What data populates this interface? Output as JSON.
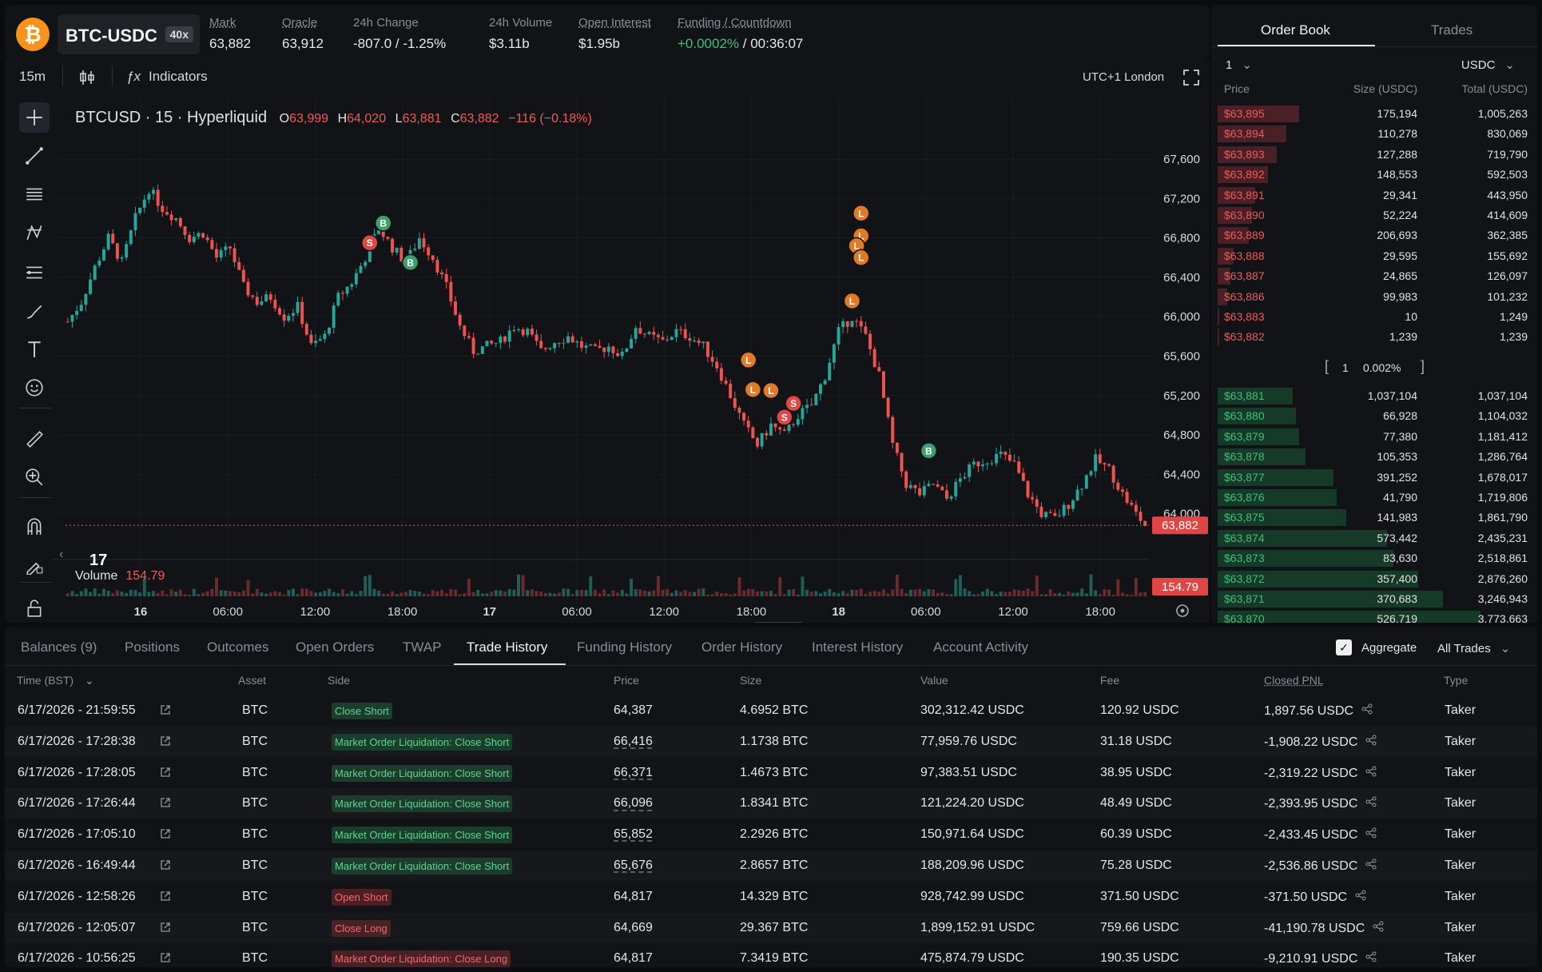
{
  "header": {
    "logo_glyph": "₿",
    "symbol": "BTC-USDC",
    "leverage": "40x",
    "stats": [
      {
        "label": "Mark",
        "value": "63,882",
        "underline": true,
        "tone": ""
      },
      {
        "label": "Oracle",
        "value": "63,912",
        "underline": true,
        "tone": ""
      },
      {
        "label": "24h Change",
        "value": "-807.0 / -1.25%",
        "underline": false,
        "tone": "red"
      },
      {
        "label": "24h Volume",
        "value": "$3.11b",
        "underline": false,
        "tone": ""
      },
      {
        "label": "Open Interest",
        "value": "$1.95b",
        "underline": true,
        "tone": ""
      },
      {
        "label": "Funding / Countdown",
        "value_green": "+0.0002%",
        "value_rest": " / 00:36:07",
        "underline": true,
        "tone": "split"
      }
    ]
  },
  "toolbar": {
    "interval": "15m",
    "indicators": "Indicators",
    "timezone": "UTC+1 London"
  },
  "chart_title": {
    "name": "BTCUSD · 15 · Hyperliquid",
    "o_label": "O",
    "o": "63,999",
    "h_label": "H",
    "h": "64,020",
    "l_label": "L",
    "l": "63,881",
    "c_label": "C",
    "c": "63,882",
    "change": "−116 (−0.18%)"
  },
  "volume_label": "Volume",
  "volume_value": "154.79",
  "tv_logo": "17",
  "chart_data": {
    "type": "candlestick",
    "y_ticks": [
      "67,600",
      "67,200",
      "66,800",
      "66,400",
      "66,000",
      "65,600",
      "65,200",
      "64,800",
      "64,400",
      "64,000"
    ],
    "y_tick_values": [
      67600,
      67200,
      66800,
      66400,
      66000,
      65600,
      65200,
      64800,
      64400,
      64000
    ],
    "ylim": [
      63600,
      67900
    ],
    "x_ticks": [
      "16",
      "06:00",
      "12:00",
      "18:00",
      "17",
      "06:00",
      "12:00",
      "18:00",
      "18",
      "06:00",
      "12:00",
      "18:00"
    ],
    "x_bold": [
      true,
      false,
      false,
      false,
      true,
      false,
      false,
      false,
      true,
      false,
      false,
      false
    ],
    "last_price": "63,882",
    "last_price_value": 63882,
    "last_volume": "154.79",
    "close_path": [
      [
        0,
        65950
      ],
      [
        3,
        66150
      ],
      [
        6,
        66500
      ],
      [
        9,
        66800
      ],
      [
        12,
        66550
      ],
      [
        15,
        67000
      ],
      [
        18,
        67300
      ],
      [
        21,
        67100
      ],
      [
        24,
        67000
      ],
      [
        27,
        66800
      ],
      [
        30,
        66850
      ],
      [
        33,
        66600
      ],
      [
        36,
        66700
      ],
      [
        39,
        66300
      ],
      [
        42,
        66150
      ],
      [
        45,
        66200
      ],
      [
        48,
        66000
      ],
      [
        51,
        66100
      ],
      [
        54,
        65700
      ],
      [
        57,
        65800
      ],
      [
        60,
        66200
      ],
      [
        63,
        66350
      ],
      [
        66,
        66600
      ],
      [
        69,
        66900
      ],
      [
        72,
        66700
      ],
      [
        75,
        66550
      ],
      [
        78,
        66800
      ],
      [
        81,
        66600
      ],
      [
        84,
        66300
      ],
      [
        87,
        65900
      ],
      [
        90,
        65650
      ],
      [
        93,
        65700
      ],
      [
        96,
        65750
      ],
      [
        99,
        65900
      ],
      [
        102,
        65850
      ],
      [
        105,
        65650
      ],
      [
        108,
        65750
      ],
      [
        111,
        65800
      ],
      [
        114,
        65700
      ],
      [
        117,
        65650
      ],
      [
        120,
        65700
      ],
      [
        123,
        65600
      ],
      [
        126,
        65900
      ],
      [
        129,
        65800
      ],
      [
        132,
        65750
      ],
      [
        135,
        65850
      ],
      [
        138,
        65800
      ],
      [
        141,
        65700
      ],
      [
        144,
        65500
      ],
      [
        147,
        65200
      ],
      [
        150,
        64900
      ],
      [
        153,
        64700
      ],
      [
        156,
        64900
      ],
      [
        159,
        64800
      ],
      [
        162,
        65000
      ],
      [
        165,
        65100
      ],
      [
        168,
        65400
      ],
      [
        171,
        65850
      ],
      [
        174,
        66000
      ],
      [
        177,
        65800
      ],
      [
        180,
        65400
      ],
      [
        183,
        64700
      ],
      [
        186,
        64300
      ],
      [
        189,
        64200
      ],
      [
        192,
        64300
      ],
      [
        195,
        64150
      ],
      [
        198,
        64350
      ],
      [
        201,
        64500
      ],
      [
        204,
        64550
      ],
      [
        207,
        64600
      ],
      [
        210,
        64500
      ],
      [
        213,
        64200
      ],
      [
        216,
        64000
      ],
      [
        219,
        63950
      ],
      [
        222,
        64100
      ],
      [
        225,
        64300
      ],
      [
        228,
        64550
      ],
      [
        231,
        64450
      ],
      [
        234,
        64200
      ],
      [
        237,
        64000
      ],
      [
        239,
        63882
      ]
    ],
    "markers": [
      {
        "t": 70,
        "price": 66950,
        "label": "B",
        "kind": "buy"
      },
      {
        "t": 67,
        "price": 66750,
        "label": "S",
        "kind": "sell"
      },
      {
        "t": 76,
        "price": 66550,
        "label": "B",
        "kind": "buy"
      },
      {
        "t": 151,
        "price": 65560,
        "label": "L",
        "kind": "liq"
      },
      {
        "t": 152,
        "price": 65260,
        "label": "L",
        "kind": "liq"
      },
      {
        "t": 156,
        "price": 65250,
        "label": "L",
        "kind": "liq"
      },
      {
        "t": 161,
        "price": 65120,
        "label": "S",
        "kind": "sell"
      },
      {
        "t": 159,
        "price": 64980,
        "label": "S",
        "kind": "sell"
      },
      {
        "t": 176,
        "price": 67050,
        "label": "L",
        "kind": "liq"
      },
      {
        "t": 176,
        "price": 66820,
        "label": "L",
        "kind": "liq"
      },
      {
        "t": 175,
        "price": 66720,
        "label": "L",
        "kind": "liq"
      },
      {
        "t": 176,
        "price": 66600,
        "label": "L",
        "kind": "liq"
      },
      {
        "t": 174,
        "price": 66160,
        "label": "L",
        "kind": "liq"
      },
      {
        "t": 191,
        "price": 64640,
        "label": "B",
        "kind": "buy"
      }
    ]
  },
  "orderbook": {
    "tabs": [
      "Order Book",
      "Trades"
    ],
    "precision": "1",
    "currency": "USDC",
    "headers": [
      "Price",
      "Size (USDC)",
      "Total (USDC)"
    ],
    "spread": [
      "1",
      "0.002%"
    ],
    "asks": [
      {
        "price": "$63,895",
        "size": "175,194",
        "total": "1,005,263",
        "depth": 0.26
      },
      {
        "price": "$63,894",
        "size": "110,278",
        "total": "830,069",
        "depth": 0.22
      },
      {
        "price": "$63,893",
        "size": "127,288",
        "total": "719,790",
        "depth": 0.19
      },
      {
        "price": "$63,892",
        "size": "148,553",
        "total": "592,503",
        "depth": 0.16
      },
      {
        "price": "$63,891",
        "size": "29,341",
        "total": "443,950",
        "depth": 0.12
      },
      {
        "price": "$63,890",
        "size": "52,224",
        "total": "414,609",
        "depth": 0.11
      },
      {
        "price": "$63,889",
        "size": "206,693",
        "total": "362,385",
        "depth": 0.1
      },
      {
        "price": "$63,888",
        "size": "29,595",
        "total": "155,692",
        "depth": 0.05
      },
      {
        "price": "$63,887",
        "size": "24,865",
        "total": "126,097",
        "depth": 0.04
      },
      {
        "price": "$63,886",
        "size": "99,983",
        "total": "101,232",
        "depth": 0.03
      },
      {
        "price": "$63,883",
        "size": "10",
        "total": "1,249",
        "depth": 0.005
      },
      {
        "price": "$63,882",
        "size": "1,239",
        "total": "1,239",
        "depth": 0.005
      }
    ],
    "bids": [
      {
        "price": "$63,881",
        "size": "1,037,104",
        "total": "1,037,104",
        "depth": 0.24
      },
      {
        "price": "$63,880",
        "size": "66,928",
        "total": "1,104,032",
        "depth": 0.25
      },
      {
        "price": "$63,879",
        "size": "77,380",
        "total": "1,181,412",
        "depth": 0.26
      },
      {
        "price": "$63,878",
        "size": "105,353",
        "total": "1,286,764",
        "depth": 0.28
      },
      {
        "price": "$63,877",
        "size": "391,252",
        "total": "1,678,017",
        "depth": 0.37
      },
      {
        "price": "$63,876",
        "size": "41,790",
        "total": "1,719,806",
        "depth": 0.38
      },
      {
        "price": "$63,875",
        "size": "141,983",
        "total": "1,861,790",
        "depth": 0.41
      },
      {
        "price": "$63,874",
        "size": "573,442",
        "total": "2,435,231",
        "depth": 0.54
      },
      {
        "price": "$63,873",
        "size": "83,630",
        "total": "2,518,861",
        "depth": 0.56
      },
      {
        "price": "$63,872",
        "size": "357,400",
        "total": "2,876,260",
        "depth": 0.64
      },
      {
        "price": "$63,871",
        "size": "370,683",
        "total": "3,246,943",
        "depth": 0.72
      },
      {
        "price": "$63,870",
        "size": "526,719",
        "total": "3,773,663",
        "depth": 0.84
      }
    ]
  },
  "bottom": {
    "tabs": [
      "Balances (9)",
      "Positions",
      "Outcomes",
      "Open Orders",
      "TWAP",
      "Trade History",
      "Funding History",
      "Order History",
      "Interest History",
      "Account Activity"
    ],
    "active_tab": 5,
    "aggregate_label": "Aggregate",
    "filter_label": "All Trades",
    "columns": [
      "Time (BST)",
      "Asset",
      "Side",
      "Price",
      "Size",
      "Value",
      "Fee",
      "Closed PNL",
      "Type"
    ],
    "rows": [
      {
        "time": "6/17/2026 - 21:59:55",
        "asset": "BTC",
        "side": "Close Short",
        "side_tone": "g",
        "price": "64,387",
        "price_ul": false,
        "size": "4.6952 BTC",
        "value": "302,312.42 USDC",
        "fee": "120.92 USDC",
        "pnl": "1,897.56 USDC",
        "pnl_tone": "green",
        "type": "Taker"
      },
      {
        "time": "6/17/2026 - 17:28:38",
        "asset": "BTC",
        "side": "Market Order Liquidation: Close Short",
        "side_tone": "g",
        "price": "66,416",
        "price_ul": true,
        "size": "1.1738 BTC",
        "value": "77,959.76 USDC",
        "fee": "31.18 USDC",
        "pnl": "-1,908.22 USDC",
        "pnl_tone": "red",
        "type": "Taker"
      },
      {
        "time": "6/17/2026 - 17:28:05",
        "asset": "BTC",
        "side": "Market Order Liquidation: Close Short",
        "side_tone": "g",
        "price": "66,371",
        "price_ul": true,
        "size": "1.4673 BTC",
        "value": "97,383.51 USDC",
        "fee": "38.95 USDC",
        "pnl": "-2,319.22 USDC",
        "pnl_tone": "red",
        "type": "Taker"
      },
      {
        "time": "6/17/2026 - 17:26:44",
        "asset": "BTC",
        "side": "Market Order Liquidation: Close Short",
        "side_tone": "g",
        "price": "66,096",
        "price_ul": true,
        "size": "1.8341 BTC",
        "value": "121,224.20 USDC",
        "fee": "48.49 USDC",
        "pnl": "-2,393.95 USDC",
        "pnl_tone": "red",
        "type": "Taker"
      },
      {
        "time": "6/17/2026 - 17:05:10",
        "asset": "BTC",
        "side": "Market Order Liquidation: Close Short",
        "side_tone": "g",
        "price": "65,852",
        "price_ul": true,
        "size": "2.2926 BTC",
        "value": "150,971.64 USDC",
        "fee": "60.39 USDC",
        "pnl": "-2,433.45 USDC",
        "pnl_tone": "red",
        "type": "Taker"
      },
      {
        "time": "6/17/2026 - 16:49:44",
        "asset": "BTC",
        "side": "Market Order Liquidation: Close Short",
        "side_tone": "g",
        "price": "65,676",
        "price_ul": true,
        "size": "2.8657 BTC",
        "value": "188,209.96 USDC",
        "fee": "75.28 USDC",
        "pnl": "-2,536.86 USDC",
        "pnl_tone": "red",
        "type": "Taker"
      },
      {
        "time": "6/17/2026 - 12:58:26",
        "asset": "BTC",
        "side": "Open Short",
        "side_tone": "r",
        "price": "64,817",
        "price_ul": false,
        "size": "14.329 BTC",
        "value": "928,742.99 USDC",
        "fee": "371.50 USDC",
        "pnl": "-371.50 USDC",
        "pnl_tone": "red",
        "type": "Taker"
      },
      {
        "time": "6/17/2026 - 12:05:07",
        "asset": "BTC",
        "side": "Close Long",
        "side_tone": "r",
        "price": "64,669",
        "price_ul": false,
        "size": "29.367 BTC",
        "value": "1,899,152.91 USDC",
        "fee": "759.66 USDC",
        "pnl": "-41,190.78 USDC",
        "pnl_tone": "red",
        "type": "Taker"
      },
      {
        "time": "6/17/2026 - 10:56:25",
        "asset": "BTC",
        "side": "Market Order Liquidation: Close Long",
        "side_tone": "r",
        "price": "64,817",
        "price_ul": false,
        "size": "7.3419 BTC",
        "value": "475,874.79 USDC",
        "fee": "190.35 USDC",
        "pnl": "-9,210.91 USDC",
        "pnl_tone": "red",
        "type": "Taker"
      }
    ]
  },
  "colors": {
    "up": "#26a69a",
    "down": "#ef5350",
    "buy": "#3d9f6e",
    "sell": "#e04848",
    "liq": "#e07a28",
    "bid_bar": "#163a28",
    "ask_bar": "#4a1f25"
  }
}
